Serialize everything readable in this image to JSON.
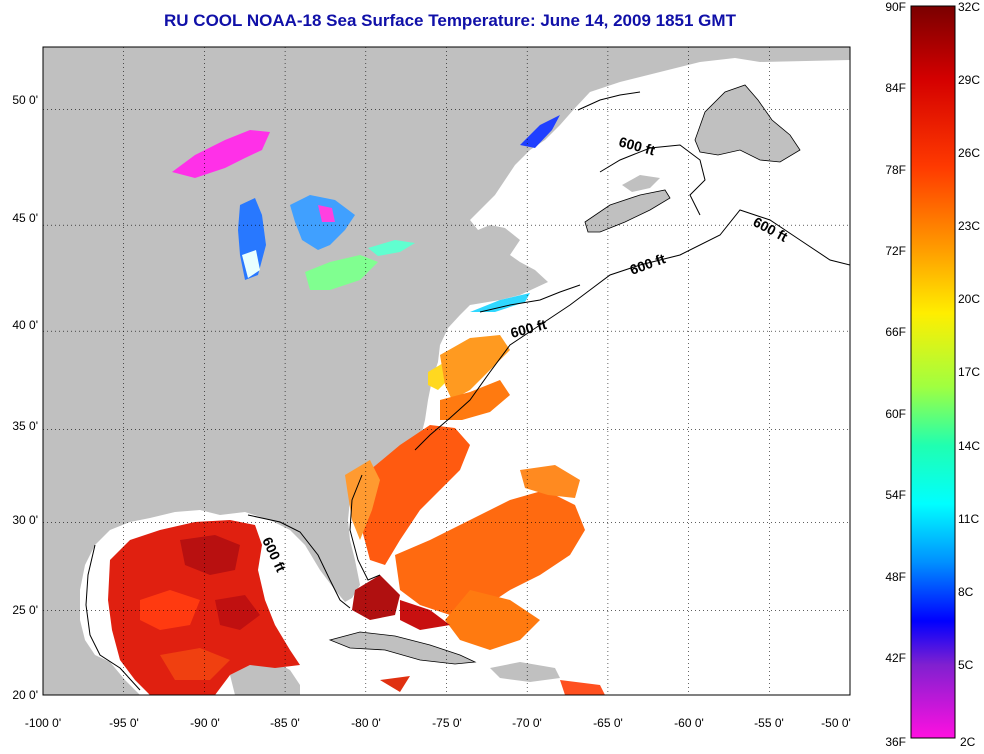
{
  "title": "RU COOL  NOAA-18  Sea Surface Temperature:  June 14, 2009 1851 GMT",
  "map": {
    "lon_range": [
      -100,
      -50
    ],
    "lat_range": [
      20,
      52.5
    ],
    "lon_ticks": [
      "-100 0'",
      "-95 0'",
      "-90 0'",
      "-85 0'",
      "-80 0'",
      "-75 0'",
      "-70 0'",
      "-65 0'",
      "-60 0'",
      "-55 0'",
      "-50 0'"
    ],
    "lat_ticks": [
      "20 0'",
      "25 0'",
      "30 0'",
      "35 0'",
      "40 0'",
      "45 0'",
      "50 0'"
    ],
    "grid": true,
    "contour_labels": [
      "600 ft",
      "600 ft",
      "600 ft",
      "600 ft",
      "600 ft"
    ],
    "land_color": "#c0c0c0",
    "water_color": "#ffffff"
  },
  "colorbar": {
    "fahrenheit": [
      "90F",
      "84F",
      "78F",
      "72F",
      "66F",
      "60F",
      "54F",
      "48F",
      "42F",
      "36F"
    ],
    "celsius": [
      "32C",
      "29C",
      "26C",
      "23C",
      "20C",
      "17C",
      "14C",
      "11C",
      "8C",
      "5C",
      "2C"
    ]
  }
}
